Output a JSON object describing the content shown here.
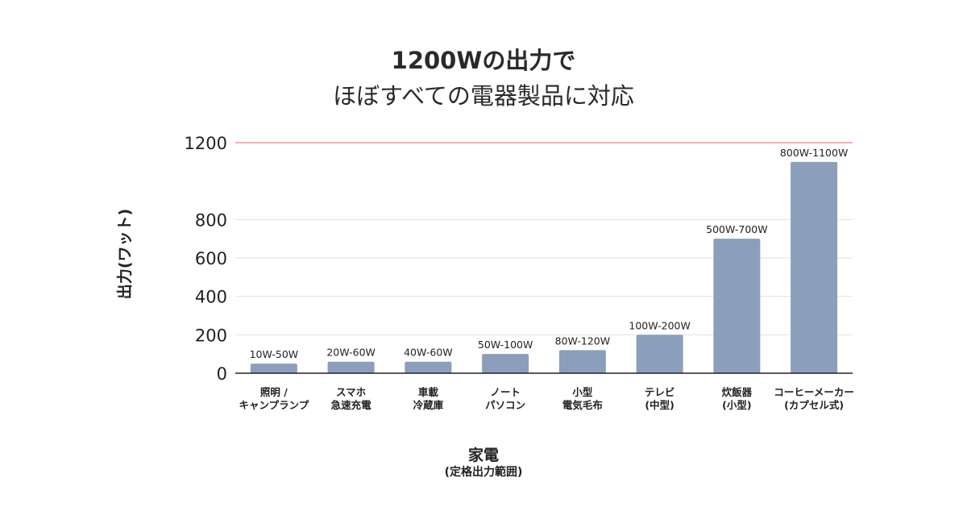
{
  "header": {
    "title_line1": "1200Wの出力で",
    "title_line2": "ほぼすべての電器製品に対応"
  },
  "axes": {
    "ylabel": "出力(ワット)",
    "xlabel": "家電",
    "xlabel_sub": "(定格出力範囲)"
  },
  "colors": {
    "bar": "#8b9fbc",
    "reference_line": "#e06666",
    "grid": "#e2e2e2",
    "axis": "#222222"
  },
  "chart_data": {
    "type": "bar",
    "title": "1200Wの出力で ほぼすべての電器製品に対応",
    "xlabel": "家電 (定格出力範囲)",
    "ylabel": "出力(ワット)",
    "ylim": [
      0,
      1200
    ],
    "yticks": [
      "0",
      "200",
      "400",
      "600",
      "800",
      "1200"
    ],
    "ytick_values": [
      0,
      200,
      400,
      600,
      800,
      1200
    ],
    "grid": true,
    "reference_line": 1200,
    "categories": [
      [
        "照明 /",
        "キャンプランプ"
      ],
      [
        "スマホ",
        "急速充電"
      ],
      [
        "車載",
        "冷蔵庫"
      ],
      [
        "ノート",
        "パソコン"
      ],
      [
        "小型",
        "電気毛布"
      ],
      [
        "テレビ",
        "(中型)"
      ],
      [
        "炊飯器",
        "(小型)"
      ],
      [
        "コーヒーメーカー",
        "(カプセル式)"
      ]
    ],
    "values": [
      50,
      60,
      60,
      100,
      120,
      200,
      700,
      1100
    ],
    "data_labels": [
      "10W-50W",
      "20W-60W",
      "40W-60W",
      "50W-100W",
      "80W-120W",
      "100W-200W",
      "500W-700W",
      "800W-1100W"
    ]
  }
}
